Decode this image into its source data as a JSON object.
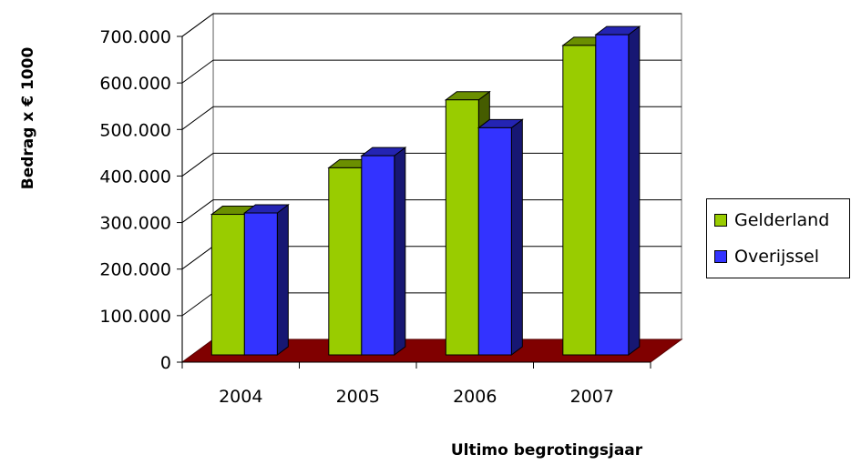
{
  "chart_data": {
    "type": "bar",
    "xlabel": "Ultimo begrotingsjaar",
    "ylabel": "Bedrag x € 1000",
    "categories": [
      "2004",
      "2005",
      "2006",
      "2007"
    ],
    "ylim": [
      0,
      700000
    ],
    "yticks": [
      0,
      100000,
      200000,
      300000,
      400000,
      500000,
      600000,
      700000
    ],
    "ytick_labels": [
      "0",
      "100.000",
      "200.000",
      "300.000",
      "400.000",
      "500.000",
      "600.000",
      "700.000"
    ],
    "grid": true,
    "legend_position": "right",
    "series": [
      {
        "name": "Gelderland",
        "values": [
          302000,
          402000,
          548000,
          665000
        ],
        "color": "#99cc00"
      },
      {
        "name": "Overijssel",
        "values": [
          305000,
          428000,
          488000,
          688000
        ],
        "color": "#3333ff"
      }
    ],
    "floor_color": "#800000"
  }
}
